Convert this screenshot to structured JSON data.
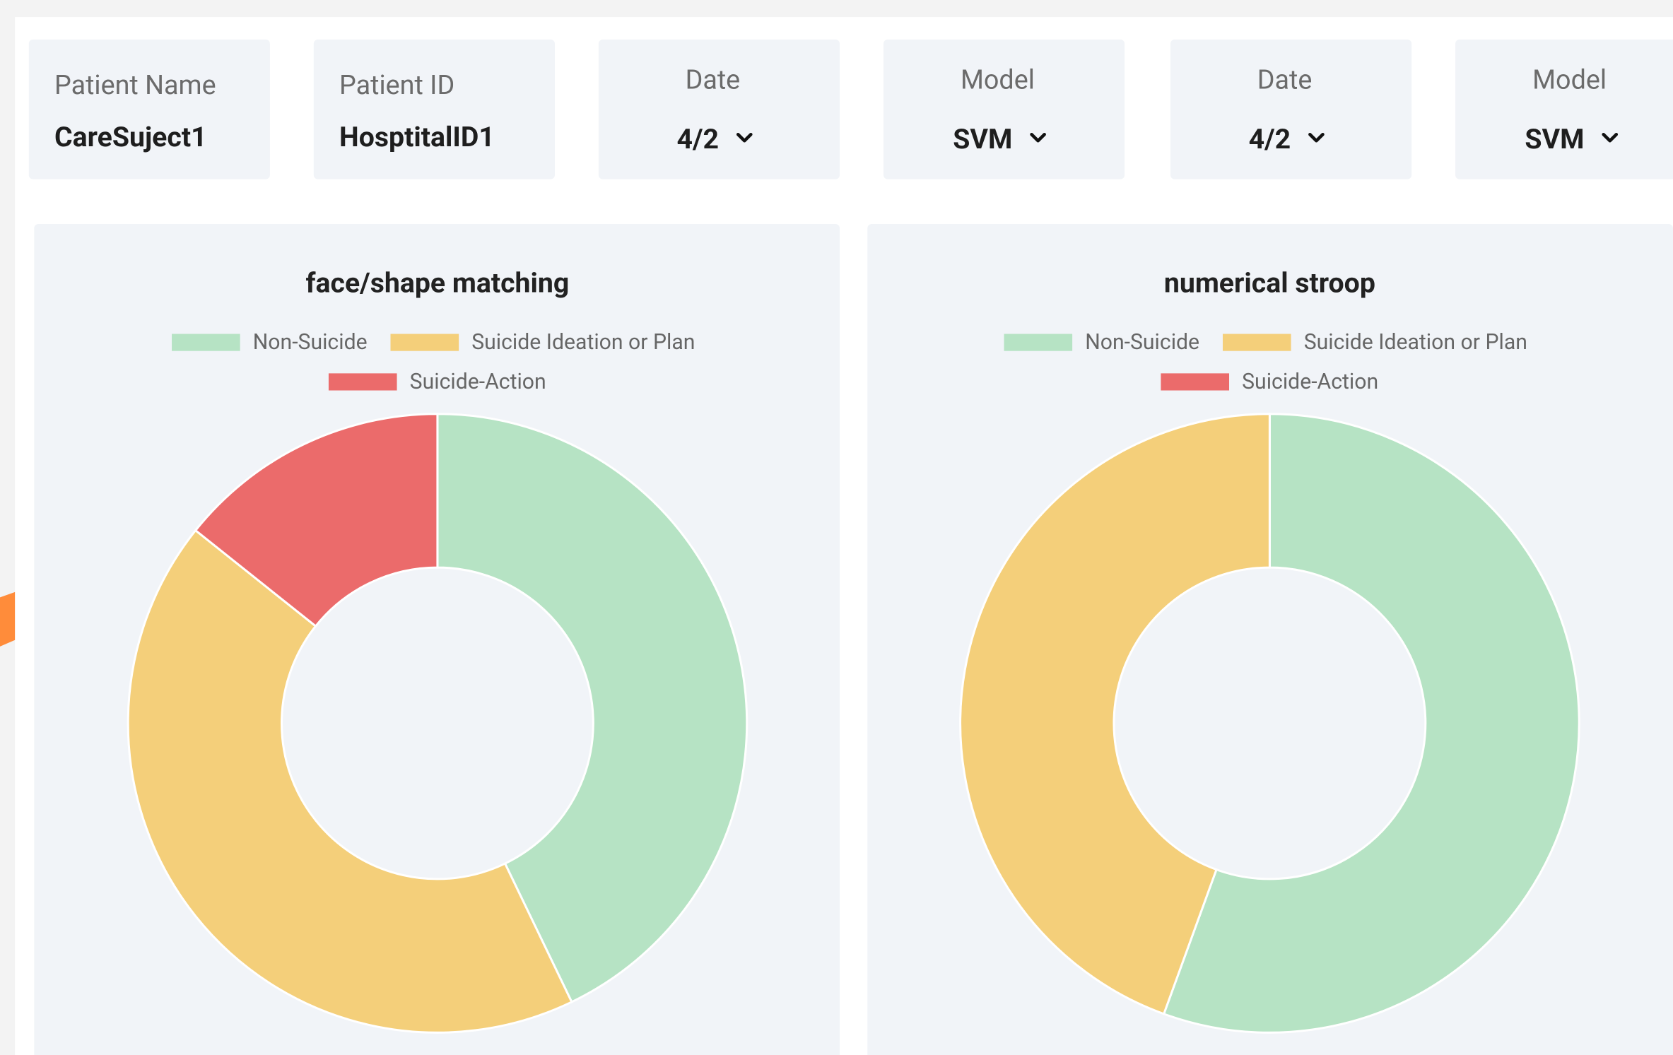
{
  "cards": [
    {
      "label": "Patient Name",
      "value": "CareSuject1"
    },
    {
      "label": "Patient ID",
      "value": "HosptitalID1"
    },
    {
      "label": "Date",
      "value": "4/2"
    },
    {
      "label": "Model",
      "value": "SVM"
    },
    {
      "label": "Date",
      "value": "4/2"
    },
    {
      "label": "Model",
      "value": "SVM"
    }
  ],
  "chart_data": [
    {
      "type": "doughnut",
      "title": "face/shape matching",
      "categories": [
        "Non-Suicide",
        "Suicide Ideation or Plan",
        "Suicide-Action"
      ],
      "values": [
        3,
        3,
        1
      ],
      "colors": [
        "#b6e3c4",
        "#f4cf7a",
        "#eb6b6b"
      ],
      "legend": "top"
    },
    {
      "type": "doughnut",
      "title": "numerical stroop",
      "categories": [
        "Non-Suicide",
        "Suicide Ideation or Plan",
        "Suicide-Action"
      ],
      "values": [
        5,
        4,
        0
      ],
      "colors": [
        "#b6e3c4",
        "#f4cf7a",
        "#eb6b6b"
      ],
      "legend": "top"
    }
  ]
}
